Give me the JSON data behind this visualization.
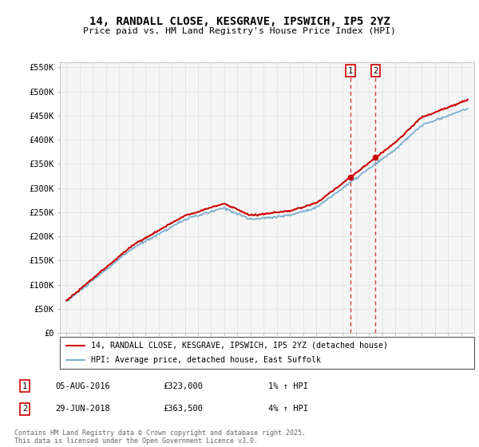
{
  "title_line1": "14, RANDALL CLOSE, KESGRAVE, IPSWICH, IP5 2YZ",
  "title_line2": "Price paid vs. HM Land Registry's House Price Index (HPI)",
  "ylim": [
    0,
    560000
  ],
  "yticks": [
    0,
    50000,
    100000,
    150000,
    200000,
    250000,
    300000,
    350000,
    400000,
    450000,
    500000,
    550000
  ],
  "ytick_labels": [
    "£0",
    "£50K",
    "£100K",
    "£150K",
    "£200K",
    "£250K",
    "£300K",
    "£350K",
    "£400K",
    "£450K",
    "£500K",
    "£550K"
  ],
  "sale1_date": "05-AUG-2016",
  "sale1_price": 323000,
  "sale1_year": 2016.6,
  "sale1_hpi_pct": "1%",
  "sale2_date": "29-JUN-2018",
  "sale2_price": 363500,
  "sale2_year": 2018.5,
  "sale2_hpi_pct": "4%",
  "legend_line1": "14, RANDALL CLOSE, KESGRAVE, IPSWICH, IP5 2YZ (detached house)",
  "legend_line2": "HPI: Average price, detached house, East Suffolk",
  "footer": "Contains HM Land Registry data © Crown copyright and database right 2025.\nThis data is licensed under the Open Government Licence v3.0.",
  "sale_color": "#cc0000",
  "hpi_color": "#7aafce",
  "vline_color": "#cc0000",
  "background_color": "#ffffff",
  "grid_color": "#e0e0e0",
  "plot_bg": "#f5f5f5",
  "xlim_left": 1994.5,
  "xlim_right": 2026.0
}
